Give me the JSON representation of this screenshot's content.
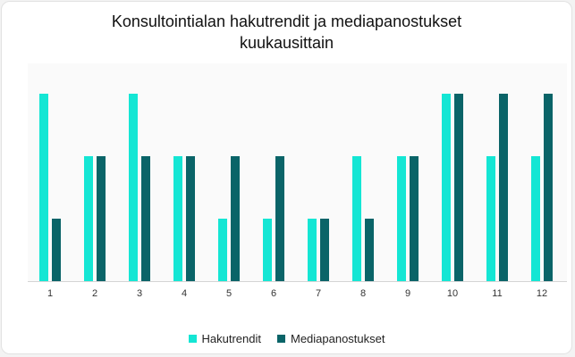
{
  "chart_data": {
    "type": "bar",
    "title": "Konsultointialan hakutrendit ja mediapanostukset\nkuukausittain",
    "categories": [
      "1",
      "2",
      "3",
      "4",
      "5",
      "6",
      "7",
      "8",
      "9",
      "10",
      "11",
      "12"
    ],
    "series": [
      {
        "name": "Hakutrendit",
        "color": "#14e6d4",
        "values": [
          3,
          2,
          3,
          2,
          1,
          1,
          1,
          2,
          2,
          3,
          2,
          2
        ]
      },
      {
        "name": "Mediapanostukset",
        "color": "#0a6468",
        "values": [
          1,
          2,
          2,
          2,
          2,
          2,
          1,
          1,
          2,
          3,
          3,
          3
        ]
      }
    ],
    "ylim": [
      0,
      3
    ],
    "grid": false,
    "legend_position": "bottom"
  }
}
